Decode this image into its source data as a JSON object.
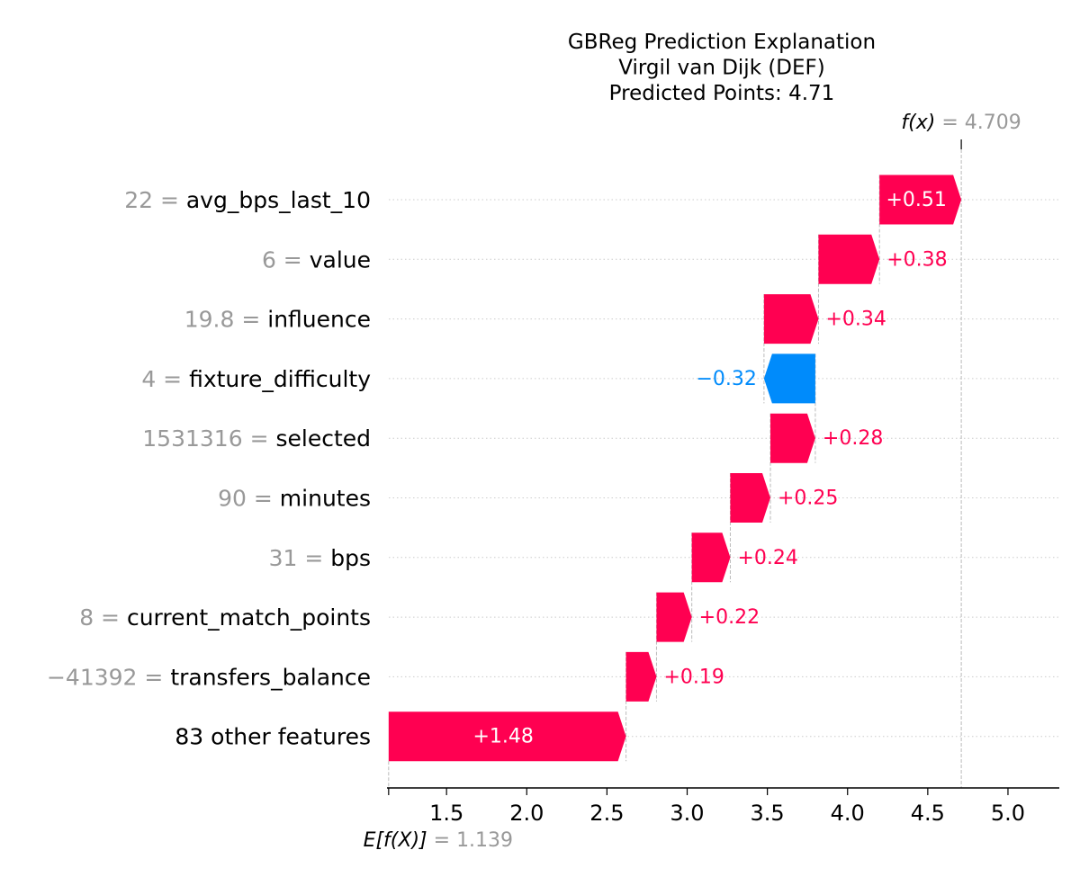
{
  "chart_data": {
    "type": "waterfall",
    "title_lines": [
      "GBReg Prediction Explanation",
      "Virgil van Dijk (DEF)",
      "Predicted Points: 4.71"
    ],
    "base_value": 1.139,
    "base_value_label": "1.139",
    "base_value_prefix": "E[f(X)]",
    "output_value": 4.709,
    "output_value_label": "4.709",
    "output_value_prefix": "f(x)",
    "features": [
      {
        "value": "22",
        "name": "avg_bps_last_10",
        "contribution": 0.51,
        "label": "+0.51"
      },
      {
        "value": "6",
        "name": "value",
        "contribution": 0.38,
        "label": "+0.38"
      },
      {
        "value": "19.8",
        "name": "influence",
        "contribution": 0.34,
        "label": "+0.34"
      },
      {
        "value": "4",
        "name": "fixture_difficulty",
        "contribution": -0.32,
        "label": "−0.32"
      },
      {
        "value": "1531316",
        "name": "selected",
        "contribution": 0.28,
        "label": "+0.28"
      },
      {
        "value": "90",
        "name": "minutes",
        "contribution": 0.25,
        "label": "+0.25"
      },
      {
        "value": "31",
        "name": "bps",
        "contribution": 0.24,
        "label": "+0.24"
      },
      {
        "value": "8",
        "name": "current_match_points",
        "contribution": 0.22,
        "label": "+0.22"
      },
      {
        "value": "−41392",
        "name": "transfers_balance",
        "contribution": 0.19,
        "label": "+0.19"
      },
      {
        "value": "",
        "name": "83 other features",
        "contribution": 1.48,
        "label": "+1.48"
      }
    ],
    "x_ticks": [
      1.5,
      2.0,
      2.5,
      3.0,
      3.5,
      4.0,
      4.5,
      5.0
    ],
    "x_tick_labels": [
      "1.5",
      "2.0",
      "2.5",
      "3.0",
      "3.5",
      "4.0",
      "4.5",
      "5.0"
    ],
    "xlim": [
      1.14,
      5.32
    ],
    "colors": {
      "positive": "#ff0051",
      "negative": "#008bfb",
      "muted_text": "#999999",
      "grid": "#cccccc"
    }
  }
}
